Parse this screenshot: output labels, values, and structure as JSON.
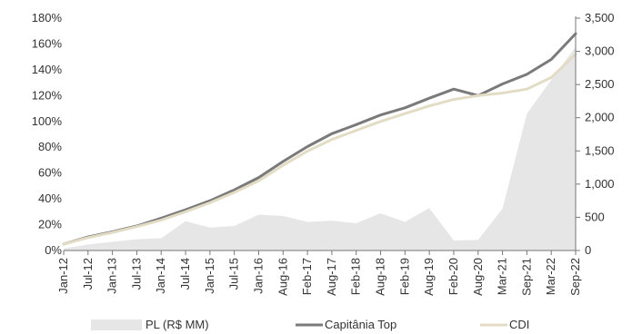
{
  "chart_data": {
    "type": "line",
    "title": "",
    "x": [
      "Jan-12",
      "Jul-12",
      "Jan-13",
      "Jul-13",
      "Jan-14",
      "Jul-14",
      "Jan-15",
      "Jul-15",
      "Jan-16",
      "Aug-16",
      "Feb-17",
      "Aug-17",
      "Feb-18",
      "Aug-18",
      "Feb-19",
      "Aug-19",
      "Feb-20",
      "Aug-20",
      "Mar-21",
      "Sep-21",
      "Mar-22",
      "Sep-22"
    ],
    "left_axis": {
      "ylim": [
        0,
        180
      ],
      "ticks": [
        0,
        20,
        40,
        60,
        80,
        100,
        120,
        140,
        160,
        180
      ],
      "tick_labels": [
        "0%",
        "20%",
        "40%",
        "60%",
        "80%",
        "100%",
        "120%",
        "140%",
        "160%",
        "180%"
      ]
    },
    "right_axis": {
      "ylim": [
        0,
        3500
      ],
      "ticks": [
        0,
        500,
        1000,
        1500,
        2000,
        2500,
        3000,
        3500
      ],
      "tick_labels": [
        "0",
        "500",
        "1,000",
        "1,500",
        "2,000",
        "2,500",
        "3,000",
        "3,500"
      ]
    },
    "grid": false,
    "legend_position": "bottom",
    "series": [
      {
        "name": "PL (R$ MM)",
        "type": "area",
        "axis": "right",
        "color": "#e6e6e6",
        "values": [
          30,
          90,
          130,
          170,
          185,
          440,
          345,
          370,
          540,
          520,
          430,
          450,
          410,
          560,
          430,
          640,
          150,
          160,
          630,
          2060,
          2570,
          3070
        ]
      },
      {
        "name": "Capitânia Top",
        "type": "line",
        "axis": "left",
        "color": "#7a7a7a",
        "values": [
          5,
          10.5,
          14.5,
          19,
          25,
          31.5,
          38.5,
          47,
          56.5,
          69,
          80.5,
          90.5,
          97.5,
          105,
          110.5,
          118,
          125,
          120,
          129,
          136.5,
          148,
          168
        ]
      },
      {
        "name": "CDI",
        "type": "line",
        "axis": "left",
        "color": "#e3dcc5",
        "values": [
          5,
          10,
          14,
          18.5,
          23.5,
          30,
          37,
          45,
          54,
          66,
          77,
          86,
          93,
          100,
          106,
          112,
          117,
          120,
          122,
          125,
          134,
          152
        ]
      }
    ]
  }
}
